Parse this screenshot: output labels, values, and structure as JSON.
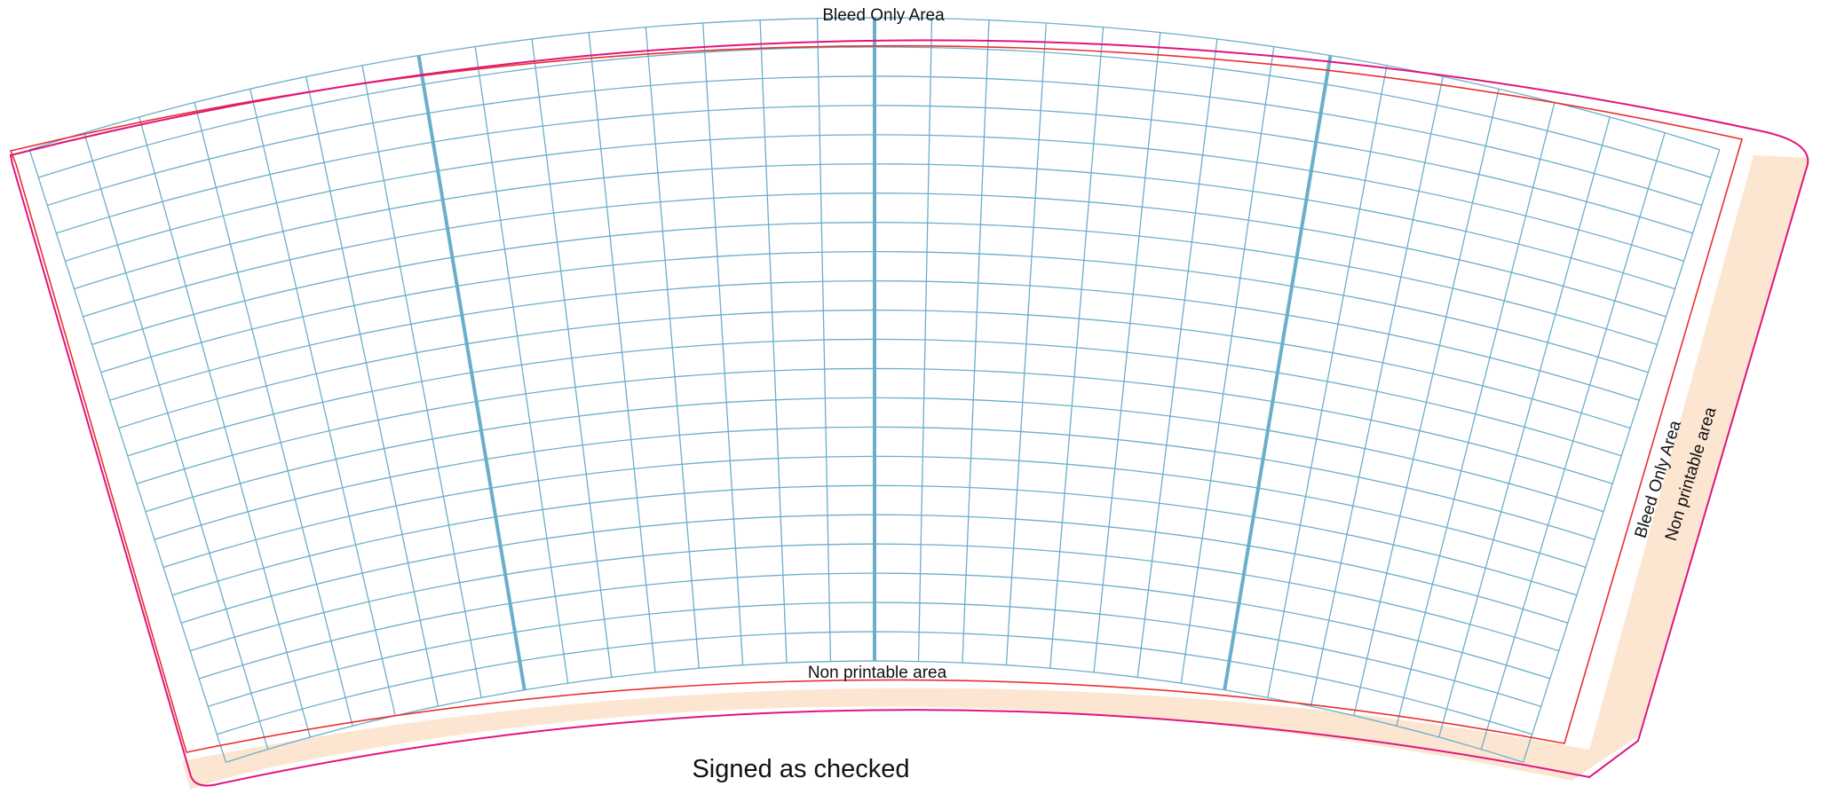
{
  "labels": {
    "bleed_top": "Bleed Only Area",
    "bleed_right": "Bleed Only Area",
    "non_printable_bottom": "Non printable area",
    "non_printable_right": "Non printable area",
    "signature": "Signed as checked"
  },
  "colors": {
    "cut_line": "#e0157f",
    "bleed_line": "#e8302f",
    "grid_line": "#6aaecb",
    "non_printable_fill": "#fce6d2"
  }
}
